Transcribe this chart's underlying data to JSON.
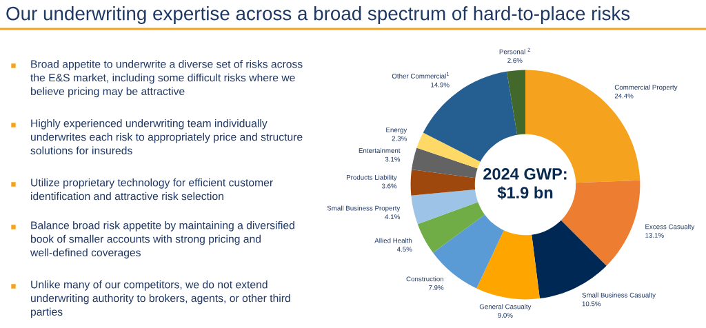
{
  "chart_data": {
    "type": "donut",
    "title": "Our underwriting expertise across a broad spectrum of hard-to-place risks",
    "categories": [
      "Commercial Property",
      "Excess Casualty",
      "Small Business Casualty",
      "General Casualty",
      "Construction",
      "Allied Health",
      "Small Business Property",
      "Products Liability",
      "Entertainment",
      "Energy",
      "Other Commercial$^{1}$",
      "Personal $^{2}$"
    ],
    "values": [
      24.4,
      13.1,
      10.5,
      9.0,
      7.9,
      4.5,
      4.1,
      3.6,
      3.1,
      2.3,
      14.9,
      2.6
    ],
    "value_labels": [
      "24.4%",
      "13.1%",
      "10.5%",
      "9.0%",
      "7.9%",
      "4.5%",
      "4.1%",
      "3.6%",
      "3.1%",
      "2.3%",
      "14.9%",
      "2.6%"
    ],
    "colors": [
      "#f5a21f",
      "#ed7d31",
      "#002855",
      "#ffa500",
      "#5b9bd5",
      "#70ad47",
      "#9dc3e6",
      "#9e480e",
      "#636363",
      "#ffd966",
      "#255e91",
      "#43682b"
    ],
    "annotations": [
      "Broad appetite to underwrite a diverse set of risks across the E&S market, including some difficult risks where we believe pricing may be attractive",
      "Highly experienced underwriting team individually underwrites each risk to appropriately price and structure solutions for insureds",
      "Utilize proprietary technology for efficient customer identification and attractive risk selection",
      "Balance broad risk appetite by maintaining a diversified book of smaller accounts with strong pricing and well-defined coverages",
      "Unlike many of our competitors, we do not extend underwriting authority to brokers, agents, or other third parties",
      "2024 GWP:\n$1.9 bn"
    ],
    "legend": false
  }
}
